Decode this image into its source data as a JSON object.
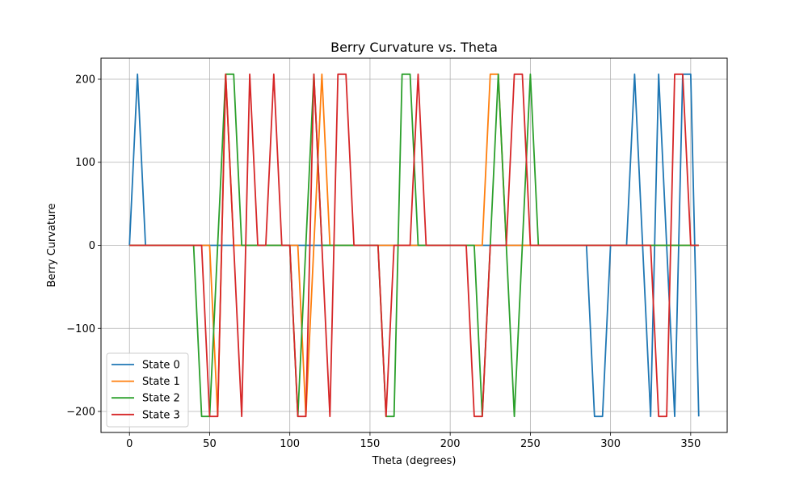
{
  "chart_data": {
    "type": "line",
    "title": "Berry Curvature vs. Theta",
    "xlabel": "Theta (degrees)",
    "ylabel": "Berry Curvature",
    "xlim": [
      -17.75,
      372.75
    ],
    "ylim": [
      -225.3,
      225.3
    ],
    "xticks": [
      0,
      50,
      100,
      150,
      200,
      250,
      300,
      350
    ],
    "yticks": [
      -200,
      -100,
      0,
      100,
      200
    ],
    "grid": true,
    "legend_position": "lower left",
    "x": [
      0,
      5,
      10,
      15,
      20,
      25,
      30,
      35,
      40,
      45,
      50,
      55,
      60,
      65,
      70,
      75,
      80,
      85,
      90,
      95,
      100,
      105,
      110,
      115,
      120,
      125,
      130,
      135,
      140,
      145,
      150,
      155,
      160,
      165,
      170,
      175,
      180,
      185,
      190,
      195,
      200,
      205,
      210,
      215,
      220,
      225,
      230,
      235,
      240,
      245,
      250,
      255,
      260,
      265,
      270,
      275,
      280,
      285,
      290,
      295,
      300,
      305,
      310,
      315,
      320,
      325,
      330,
      335,
      340,
      345,
      350,
      355
    ],
    "series": [
      {
        "name": "State 0",
        "color": "#1f77b4",
        "values": [
          0,
          206,
          0,
          0,
          0,
          0,
          0,
          0,
          0,
          0,
          0,
          0,
          0,
          0,
          0,
          0,
          0,
          0,
          0,
          0,
          0,
          0,
          0,
          0,
          0,
          0,
          0,
          0,
          0,
          0,
          0,
          0,
          0,
          0,
          0,
          0,
          0,
          0,
          0,
          0,
          0,
          0,
          0,
          0,
          0,
          0,
          0,
          0,
          0,
          0,
          0,
          0,
          0,
          0,
          0,
          0,
          0,
          0,
          -206,
          -206,
          0,
          0,
          0,
          206,
          0,
          -206,
          206,
          0,
          -206,
          206,
          206,
          -206
        ]
      },
      {
        "name": "State 1",
        "color": "#ff7f0e",
        "values": [
          0,
          0,
          0,
          0,
          0,
          0,
          0,
          0,
          0,
          0,
          0,
          -206,
          206,
          0,
          0,
          0,
          0,
          0,
          0,
          0,
          0,
          0,
          -206,
          0,
          206,
          0,
          0,
          0,
          0,
          0,
          0,
          0,
          0,
          0,
          0,
          0,
          0,
          0,
          0,
          0,
          0,
          0,
          0,
          0,
          0,
          206,
          206,
          0,
          0,
          0,
          0,
          0,
          0,
          0,
          0,
          0,
          0,
          0,
          0,
          0,
          0,
          0,
          0,
          0,
          0,
          0,
          0,
          0,
          0,
          0,
          0,
          0
        ]
      },
      {
        "name": "State 2",
        "color": "#2ca02c",
        "values": [
          0,
          0,
          0,
          0,
          0,
          0,
          0,
          0,
          0,
          -206,
          -206,
          0,
          206,
          206,
          0,
          0,
          0,
          0,
          0,
          0,
          0,
          -206,
          0,
          206,
          0,
          0,
          0,
          0,
          0,
          0,
          0,
          0,
          -206,
          -206,
          206,
          206,
          0,
          0,
          0,
          0,
          0,
          0,
          0,
          0,
          -206,
          0,
          206,
          0,
          -206,
          0,
          206,
          0,
          0,
          0,
          0,
          0,
          0,
          0,
          0,
          0,
          0,
          0,
          0,
          0,
          0,
          0,
          0,
          0,
          0,
          0,
          0,
          0
        ]
      },
      {
        "name": "State 3",
        "color": "#d62728",
        "values": [
          0,
          0,
          0,
          0,
          0,
          0,
          0,
          0,
          0,
          0,
          -206,
          -206,
          206,
          0,
          -206,
          206,
          0,
          0,
          206,
          0,
          0,
          -206,
          -206,
          206,
          0,
          -206,
          206,
          206,
          0,
          0,
          0,
          0,
          -206,
          0,
          0,
          0,
          206,
          0,
          0,
          0,
          0,
          0,
          0,
          -206,
          -206,
          0,
          0,
          0,
          206,
          206,
          0,
          0,
          0,
          0,
          0,
          0,
          0,
          0,
          0,
          0,
          0,
          0,
          0,
          0,
          0,
          0,
          -206,
          -206,
          206,
          206,
          0,
          0
        ]
      }
    ]
  }
}
